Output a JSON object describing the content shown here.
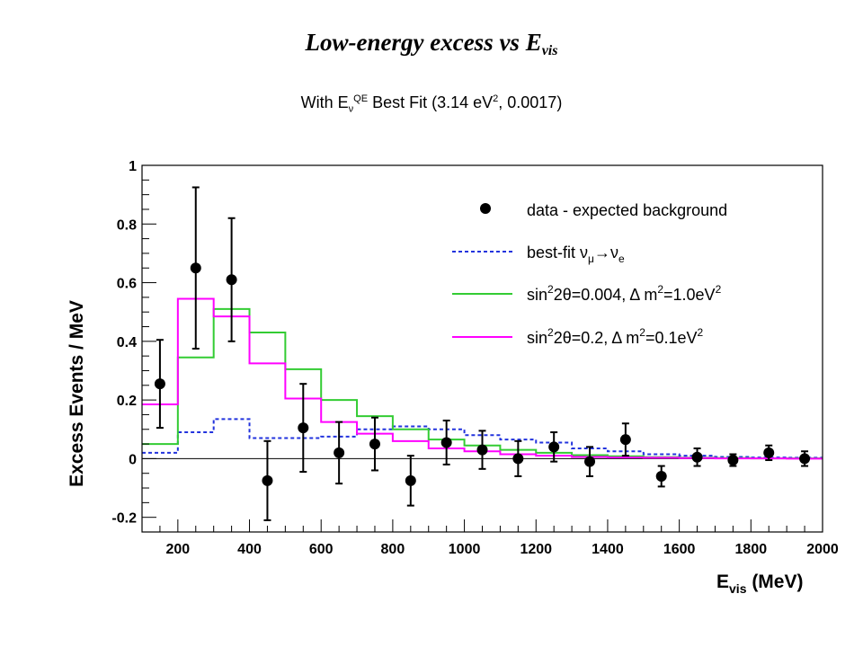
{
  "header": {
    "title_main": "Low-energy excess vs E",
    "title_sub": "vis",
    "subtitle_pre": "With E",
    "subtitle_nu": "ν",
    "subtitle_qe": "QE",
    "subtitle_mid": " Best Fit (3.14 eV",
    "subtitle_sq": "2",
    "subtitle_post": ", 0.0017)"
  },
  "chart_data": {
    "type": "histogram-with-points",
    "xlabel_main": "E",
    "xlabel_sub": "vis",
    "xlabel_unit": " (MeV)",
    "ylabel": "Excess Events / MeV",
    "xlim": [
      100,
      2000
    ],
    "ylim": [
      -0.25,
      1.0
    ],
    "x_ticks": [
      "200",
      "400",
      "600",
      "800",
      "1000",
      "1200",
      "1400",
      "1600",
      "1800",
      "2000"
    ],
    "y_ticks": [
      "-0.2",
      "0",
      "0.2",
      "0.4",
      "0.6",
      "0.8",
      "1"
    ],
    "colors": {
      "data": "#000000",
      "best_fit": "#2233dd",
      "green": "#33cc33",
      "magenta": "#ff00ff"
    },
    "data_points": {
      "name": "data - expected background",
      "x": [
        150,
        250,
        350,
        450,
        550,
        650,
        750,
        850,
        950,
        1050,
        1150,
        1250,
        1350,
        1450,
        1550,
        1650,
        1750,
        1850,
        1950
      ],
      "y": [
        0.255,
        0.65,
        0.61,
        -0.075,
        0.105,
        0.02,
        0.05,
        -0.075,
        0.055,
        0.03,
        0.0,
        0.04,
        -0.01,
        0.065,
        -0.06,
        0.005,
        -0.005,
        0.02,
        0.0
      ],
      "err": [
        0.15,
        0.275,
        0.21,
        0.135,
        0.15,
        0.105,
        0.09,
        0.085,
        0.075,
        0.065,
        0.06,
        0.05,
        0.05,
        0.055,
        0.035,
        0.03,
        0.02,
        0.025,
        0.025
      ]
    },
    "bin_edges": [
      100,
      200,
      300,
      400,
      500,
      600,
      700,
      800,
      900,
      1000,
      1100,
      1200,
      1300,
      1400,
      1500,
      1600,
      1700,
      1800,
      1900,
      2000
    ],
    "series": [
      {
        "name": "best-fit νμ→νe",
        "style": "dashed",
        "color_key": "best_fit",
        "values": [
          0.02,
          0.09,
          0.135,
          0.07,
          0.07,
          0.075,
          0.1,
          0.11,
          0.1,
          0.08,
          0.065,
          0.055,
          0.035,
          0.025,
          0.015,
          0.01,
          0.006,
          0.004,
          0.003
        ]
      },
      {
        "name": "sin²2θ=0.004, Δ m²=1.0eV²",
        "style": "solid",
        "color_key": "green",
        "values": [
          0.05,
          0.345,
          0.51,
          0.43,
          0.305,
          0.2,
          0.145,
          0.1,
          0.065,
          0.045,
          0.03,
          0.02,
          0.012,
          0.008,
          0.005,
          0.003,
          0.002,
          0.001,
          0.001
        ]
      },
      {
        "name": "sin²2θ=0.2, Δ m²=0.1eV²",
        "style": "solid",
        "color_key": "magenta",
        "values": [
          0.185,
          0.545,
          0.485,
          0.325,
          0.205,
          0.125,
          0.085,
          0.06,
          0.035,
          0.025,
          0.015,
          0.01,
          0.006,
          0.004,
          0.003,
          0.002,
          0.001,
          0.001,
          0.0
        ]
      }
    ],
    "legend": {
      "placement": "top-right",
      "entries": [
        {
          "text_main": "data - expected background"
        },
        {
          "text_main": "best-fit ν",
          "sub1": "μ",
          "arrow": "→",
          "mid": "ν",
          "sub2": "e"
        },
        {
          "text_main": "sin",
          "sup1": "2",
          "mid": "2θ=0.004, Δ m",
          "sup2": "2",
          "mid2": "=1.0eV",
          "sup3": "2"
        },
        {
          "text_main": "sin",
          "sup1": "2",
          "mid": "2θ=0.2, Δ m",
          "sup2": "2",
          "mid2": "=0.1eV",
          "sup3": "2"
        }
      ]
    }
  }
}
